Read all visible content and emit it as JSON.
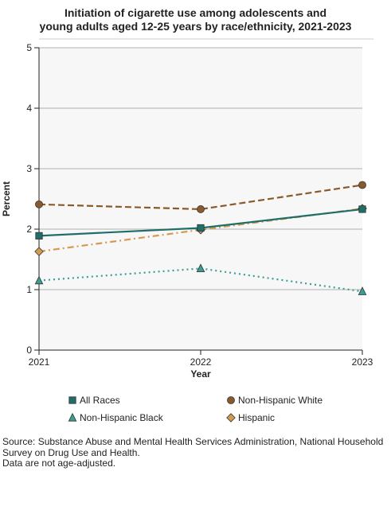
{
  "chart_data": {
    "type": "line",
    "title_lines": [
      "Initiation of cigarette use among adolescents and",
      "young adults aged 12-25 years by race/ethnicity, 2021-2023"
    ],
    "xlabel": "Year",
    "ylabel": "Percent",
    "x": [
      2021,
      2022,
      2023
    ],
    "x_tick_labels": [
      "2021",
      "2022",
      "2023"
    ],
    "ylim": [
      0,
      5
    ],
    "y_ticks": [
      0,
      1,
      2,
      3,
      4,
      5
    ],
    "y_tick_labels": [
      "0",
      "1",
      "2",
      "3",
      "4",
      "5"
    ],
    "grid": "horizontal",
    "legend_position": "bottom",
    "series": [
      {
        "name": "All Races",
        "values": [
          1.89,
          2.02,
          2.33
        ],
        "color": "#1f6f68",
        "marker": "square",
        "line_style": "solid"
      },
      {
        "name": "Non-Hispanic White",
        "values": [
          2.41,
          2.33,
          2.73
        ],
        "color": "#8b5a2b",
        "marker": "circle",
        "line_style": "dashed"
      },
      {
        "name": "Non-Hispanic Black",
        "values": [
          1.15,
          1.35,
          0.97
        ],
        "color": "#3a9e92",
        "marker": "triangle",
        "line_style": "dotted"
      },
      {
        "name": "Hispanic",
        "values": [
          1.63,
          1.99,
          2.34
        ],
        "color": "#d49a52",
        "marker": "diamond",
        "line_style": "dashdot"
      }
    ]
  },
  "colors": {
    "plot_background": "#f7f7f7",
    "gridline": "#b0b0b0",
    "axis": "#222222"
  },
  "source_lines": [
    "Source: Substance Abuse and Mental Health Services Administration, National Household",
    "Survey on Drug Use and Health.",
    "Data are not age-adjusted."
  ]
}
